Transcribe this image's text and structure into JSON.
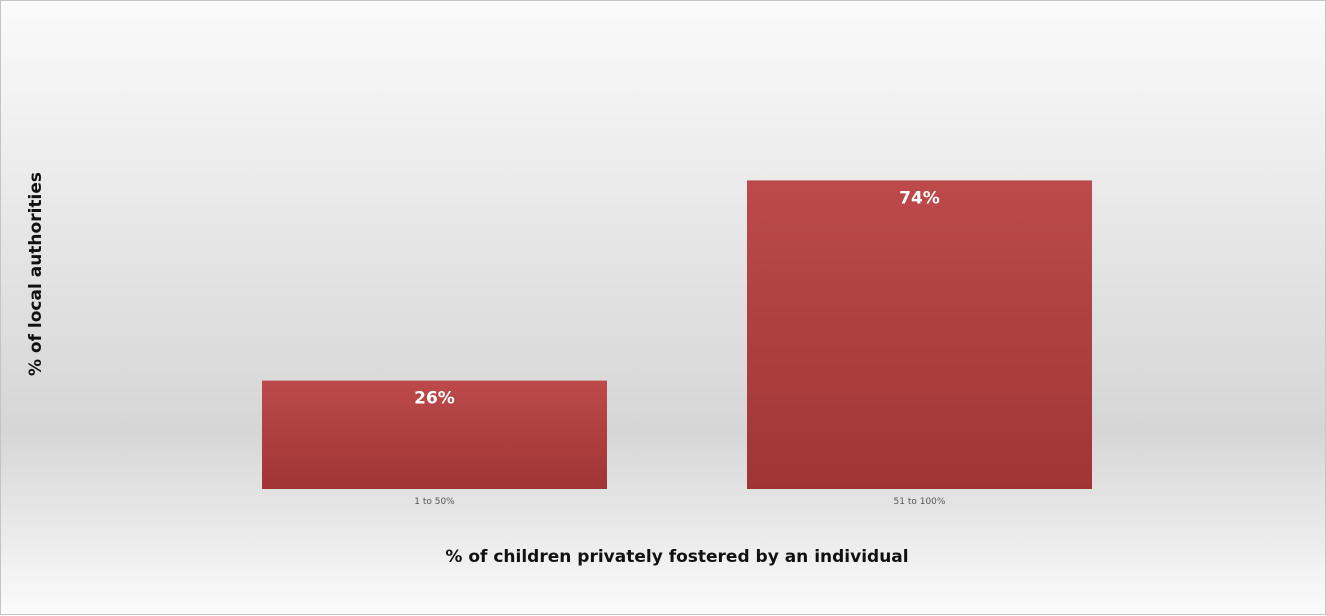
{
  "chart_data": {
    "type": "bar",
    "categories": [
      "1 to 50%",
      "51 to 100%"
    ],
    "values": [
      26,
      74
    ],
    "data_labels": [
      "26%",
      "74%"
    ],
    "title": "",
    "xlabel": "% of children privately fostered by an individual",
    "ylabel": "% of local authorities",
    "ylim": [
      0,
      100
    ],
    "grid": false,
    "legend": "none"
  },
  "colors": {
    "bar_top": "#bd4a4a",
    "bar_bottom": "#a03535"
  }
}
